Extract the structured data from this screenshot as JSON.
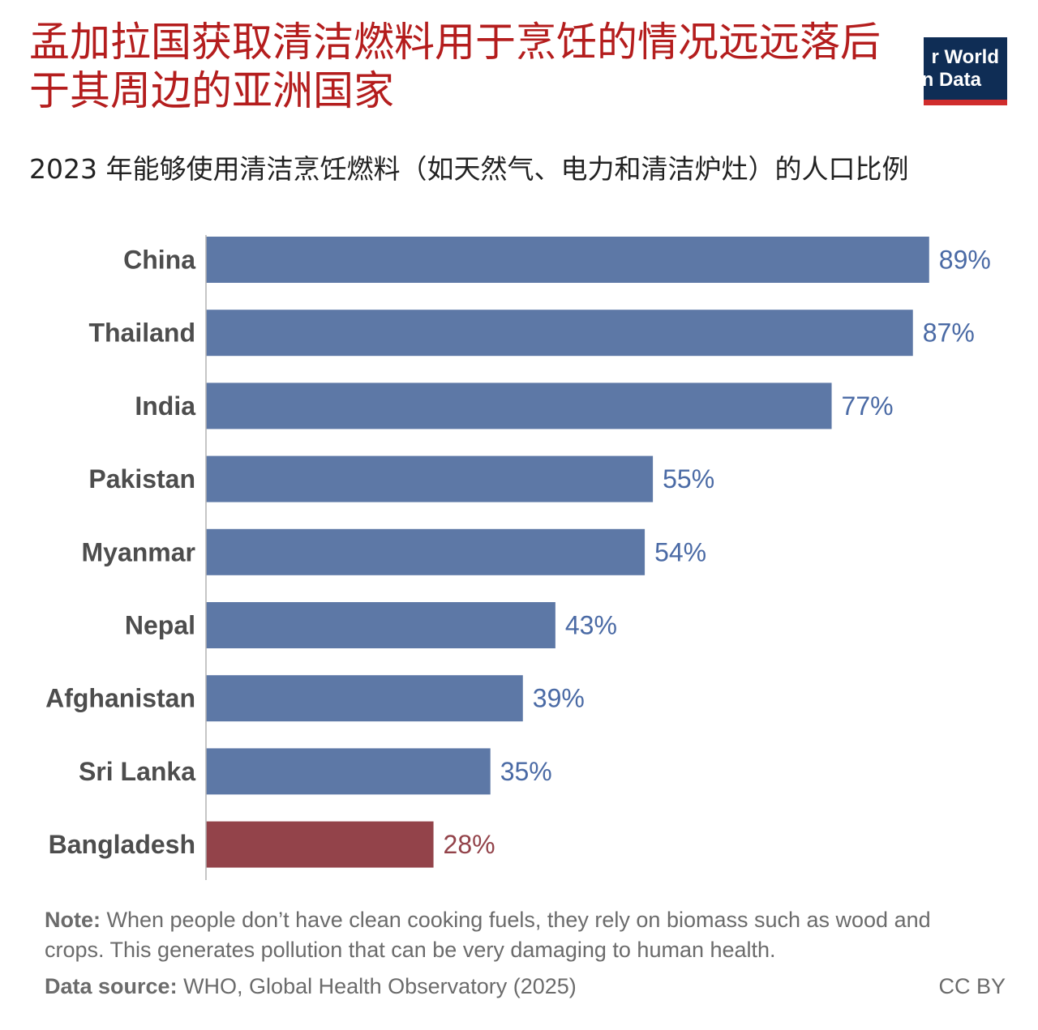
{
  "title": "孟加拉国获取清洁燃料用于烹饪的情况远远落后于其周边的亚洲国家",
  "logo": {
    "line1": "r World",
    "line2": "n Data"
  },
  "colors": {
    "title": "#b41d1d",
    "bar_default": "#5d78a6",
    "bar_highlight": "#93434a",
    "label_default": "#4a6aa5",
    "label_highlight": "#93434a",
    "category_text": "#4d4d4d",
    "logo_background": "#0f2d55",
    "logo_accent": "#d02d2d"
  },
  "chart_data": {
    "type": "bar",
    "orientation": "horizontal",
    "title": "2023 年能够使用清洁烹饪燃料（如天然气、电力和清洁炉灶）的人口比例",
    "categories": [
      "China",
      "Thailand",
      "India",
      "Pakistan",
      "Myanmar",
      "Nepal",
      "Afghanistan",
      "Sri Lanka",
      "Bangladesh"
    ],
    "values": [
      89,
      87,
      77,
      55,
      54,
      43,
      39,
      35,
      28
    ],
    "value_labels": [
      "89%",
      "87%",
      "77%",
      "55%",
      "54%",
      "43%",
      "39%",
      "35%",
      "28%"
    ],
    "highlight": "Bangladesh",
    "unit": "%",
    "xlim": [
      0,
      100
    ],
    "grid": false
  },
  "note": {
    "label": "Note:",
    "text": " When people don’t have clean cooking fuels, they rely on biomass such as wood and crops. This generates pollution that can be very damaging to human health."
  },
  "source": {
    "label": "Data source:",
    "text": " WHO, Global Health Observatory (2025)"
  },
  "license": "CC BY"
}
